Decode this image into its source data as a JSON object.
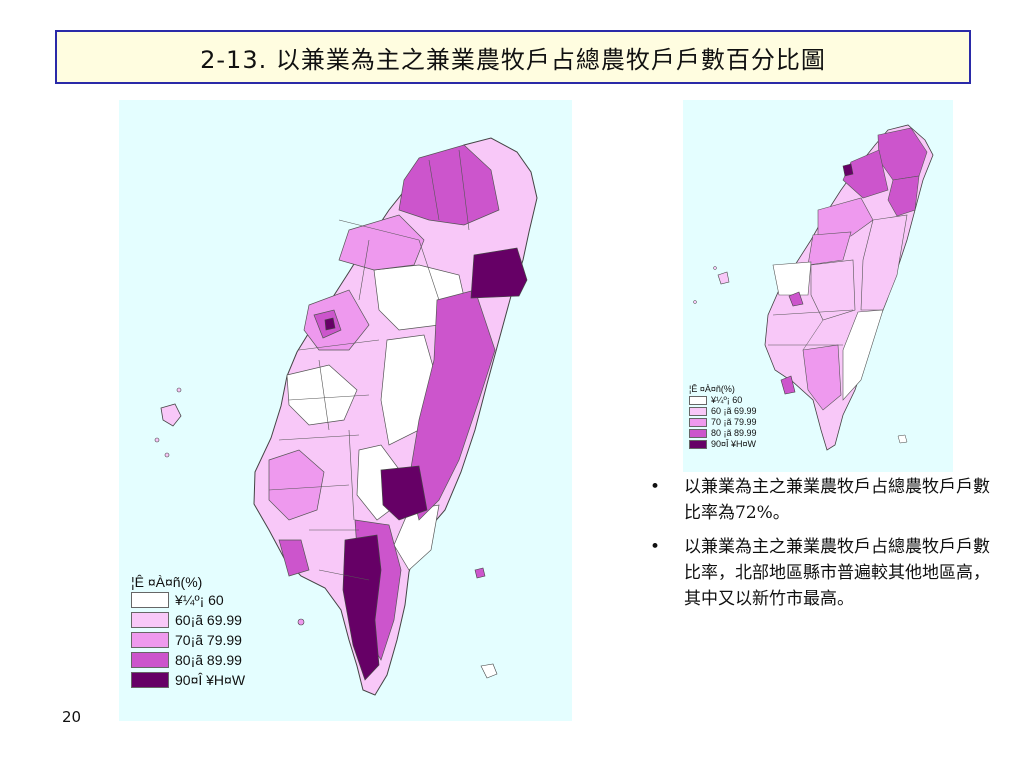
{
  "title": "2-13. 以兼業為主之兼業農牧戶占總農牧戶戶數百分比圖",
  "legend": {
    "title": "¦Ê ¤À¤ñ(%)",
    "items": [
      {
        "label": "¥¼º¡ 60",
        "color": "#ffffff"
      },
      {
        "label": "60¡ã 69.99",
        "color": "#f8c8f8"
      },
      {
        "label": "70¡ã 79.99",
        "color": "#ee99ee"
      },
      {
        "label": "80¡ã 89.99",
        "color": "#cc55cc"
      },
      {
        "label": "90¤Î ¥H¤W",
        "color": "#660066"
      }
    ]
  },
  "legend_small": {
    "title": "¦Ê ¤À¤ñ(%)",
    "items": [
      {
        "label": "¥¼º¡ 60",
        "color": "#ffffff"
      },
      {
        "label": "60 ¡ã 69.99",
        "color": "#f8c8f8"
      },
      {
        "label": "70 ¡ã 79.99",
        "color": "#ee99ee"
      },
      {
        "label": "80 ¡ã 89.99",
        "color": "#cc55cc"
      },
      {
        "label": "90¤Î ¥H¤W",
        "color": "#660066"
      }
    ]
  },
  "bullets": [
    "以兼業為主之兼業農牧戶占總農牧戶戶數比率為72%。",
    "以兼業為主之兼業農牧戶占總農牧戶戶數比率，北部地區縣市普遍較其他地區高，其中又以新竹市最高。"
  ],
  "bullet_symbol": "•",
  "page_number": "20",
  "colors": {
    "sea": "#e4feff",
    "title_bg": "#fffde0",
    "title_border": "#2a2aa8"
  }
}
